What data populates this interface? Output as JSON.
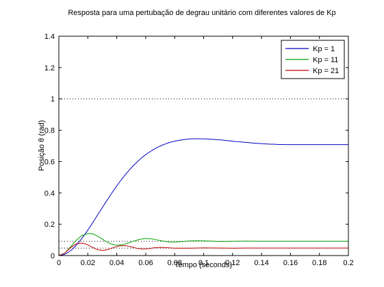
{
  "chart_data": {
    "type": "line",
    "title": "Resposta para uma pertubação de degrau unitário com diferentes valores de Kp",
    "xlabel": "Tempo (seconds)",
    "ylabel": "Posição θ (rad)",
    "xlim": [
      0,
      0.2
    ],
    "ylim": [
      0,
      1.4
    ],
    "xticks": [
      "0",
      "0.02",
      "0.04",
      "0.06",
      "0.08",
      "0.1",
      "0.12",
      "0.14",
      "0.16",
      "0.18",
      "0.2"
    ],
    "yticks": [
      "0",
      "0.2",
      "0.4",
      "0.6",
      "0.8",
      "1",
      "1.2",
      "1.4"
    ],
    "grid": false,
    "legend_position": "top-right",
    "reference_lines": [
      {
        "y": 1.0,
        "style": "dotted"
      },
      {
        "y": 0.0909,
        "style": "dotted"
      },
      {
        "y": 0.0476,
        "style": "dotted"
      }
    ],
    "series": [
      {
        "name": "Kp = 1",
        "color": "#0000c0",
        "x": [
          0,
          0.002,
          0.004,
          0.006,
          0.008,
          0.01,
          0.012,
          0.014,
          0.016,
          0.018,
          0.02,
          0.022,
          0.024,
          0.026,
          0.028,
          0.03,
          0.032,
          0.034,
          0.036,
          0.038,
          0.04,
          0.042,
          0.044,
          0.046,
          0.048,
          0.05,
          0.052,
          0.054,
          0.056,
          0.058,
          0.06,
          0.062,
          0.064,
          0.066,
          0.068,
          0.07,
          0.072,
          0.074,
          0.076,
          0.078,
          0.08,
          0.082,
          0.084,
          0.086,
          0.088,
          0.09,
          0.092,
          0.094,
          0.096,
          0.098,
          0.1,
          0.102,
          0.104,
          0.106,
          0.108,
          0.11,
          0.112,
          0.114,
          0.116,
          0.118,
          0.12,
          0.122,
          0.124,
          0.126,
          0.128,
          0.13,
          0.132,
          0.134,
          0.136,
          0.138,
          0.14,
          0.142,
          0.144,
          0.146,
          0.148,
          0.15,
          0.152,
          0.154,
          0.156,
          0.158,
          0.16,
          0.162,
          0.164,
          0.166,
          0.168,
          0.17,
          0.172,
          0.174,
          0.176,
          0.178,
          0.18,
          0.182,
          0.184,
          0.186,
          0.188,
          0.19,
          0.192,
          0.194,
          0.196,
          0.198,
          0.2
        ],
        "values": [
          0,
          0.002,
          0.008,
          0.018,
          0.031,
          0.047,
          0.066,
          0.088,
          0.111,
          0.136,
          0.163,
          0.19,
          0.219,
          0.248,
          0.277,
          0.306,
          0.335,
          0.363,
          0.391,
          0.418,
          0.445,
          0.47,
          0.494,
          0.517,
          0.539,
          0.56,
          0.579,
          0.597,
          0.614,
          0.63,
          0.644,
          0.657,
          0.669,
          0.68,
          0.69,
          0.699,
          0.707,
          0.714,
          0.72,
          0.726,
          0.73,
          0.734,
          0.737,
          0.74,
          0.742,
          0.744,
          0.745,
          0.745,
          0.745,
          0.745,
          0.745,
          0.744,
          0.743,
          0.742,
          0.741,
          0.739,
          0.738,
          0.736,
          0.734,
          0.732,
          0.73,
          0.728,
          0.727,
          0.725,
          0.723,
          0.722,
          0.72,
          0.718,
          0.717,
          0.716,
          0.714,
          0.713,
          0.712,
          0.711,
          0.711,
          0.71,
          0.709,
          0.709,
          0.708,
          0.708,
          0.708,
          0.708,
          0.708,
          0.708,
          0.708,
          0.708,
          0.708,
          0.708,
          0.708,
          0.708,
          0.708,
          0.708,
          0.708,
          0.708,
          0.708,
          0.708,
          0.708,
          0.708,
          0.708,
          0.708,
          0.708
        ]
      },
      {
        "name": "Kp = 11",
        "color": "#00a000",
        "x": [
          0,
          0.004,
          0.008,
          0.012,
          0.016,
          0.02,
          0.022,
          0.024,
          0.028,
          0.032,
          0.036,
          0.04,
          0.044,
          0.048,
          0.052,
          0.056,
          0.06,
          0.064,
          0.068,
          0.072,
          0.076,
          0.08,
          0.085,
          0.09,
          0.095,
          0.1,
          0.105,
          0.11,
          0.115,
          0.12,
          0.13,
          0.14,
          0.15,
          0.16,
          0.17,
          0.18,
          0.19,
          0.2
        ],
        "values": [
          0,
          0.015,
          0.055,
          0.098,
          0.128,
          0.14,
          0.141,
          0.137,
          0.117,
          0.093,
          0.074,
          0.066,
          0.069,
          0.08,
          0.093,
          0.104,
          0.109,
          0.107,
          0.1,
          0.092,
          0.087,
          0.086,
          0.089,
          0.093,
          0.095,
          0.094,
          0.092,
          0.09,
          0.09,
          0.091,
          0.092,
          0.091,
          0.091,
          0.091,
          0.091,
          0.091,
          0.091,
          0.091
        ]
      },
      {
        "name": "Kp = 21",
        "color": "#c00000",
        "x": [
          0,
          0.004,
          0.008,
          0.012,
          0.016,
          0.019,
          0.022,
          0.026,
          0.03,
          0.034,
          0.038,
          0.042,
          0.046,
          0.05,
          0.054,
          0.058,
          0.062,
          0.066,
          0.07,
          0.075,
          0.08,
          0.09,
          0.1,
          0.11,
          0.12,
          0.13,
          0.14,
          0.15,
          0.16,
          0.17,
          0.18,
          0.19,
          0.2
        ],
        "values": [
          0,
          0.015,
          0.05,
          0.075,
          0.079,
          0.073,
          0.058,
          0.04,
          0.032,
          0.038,
          0.052,
          0.062,
          0.063,
          0.056,
          0.046,
          0.042,
          0.044,
          0.05,
          0.052,
          0.05,
          0.047,
          0.047,
          0.049,
          0.048,
          0.047,
          0.048,
          0.048,
          0.048,
          0.048,
          0.048,
          0.048,
          0.048,
          0.048
        ]
      }
    ]
  }
}
